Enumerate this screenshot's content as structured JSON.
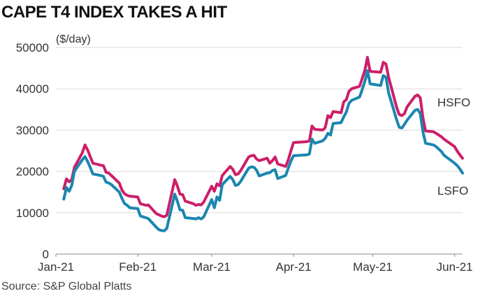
{
  "chart_data": {
    "type": "line",
    "title": "CAPE T4 INDEX TAKES A HIT",
    "unit_label": "($/day)",
    "source": "Source: S&P Global Platts",
    "ylim": [
      0,
      50000
    ],
    "y_ticks": [
      0,
      10000,
      20000,
      30000,
      40000,
      50000
    ],
    "y_tick_labels": [
      "0",
      "10000",
      "20000",
      "30000",
      "40000",
      "50000"
    ],
    "x_ticks": [
      "Jan-21",
      "Feb-21",
      "Mar-21",
      "Apr-21",
      "May-21",
      "Jun-21"
    ],
    "grid": true,
    "colors": {
      "HSFO": "#cc1f6a",
      "LSFO": "#1a86b0"
    },
    "x": [
      "2021-01-04",
      "2021-01-05",
      "2021-01-06",
      "2021-01-07",
      "2021-01-08",
      "2021-01-11",
      "2021-01-12",
      "2021-01-13",
      "2021-01-14",
      "2021-01-15",
      "2021-01-18",
      "2021-01-19",
      "2021-01-20",
      "2021-01-21",
      "2021-01-22",
      "2021-01-25",
      "2021-01-26",
      "2021-01-27",
      "2021-01-28",
      "2021-01-29",
      "2021-02-01",
      "2021-02-02",
      "2021-02-03",
      "2021-02-04",
      "2021-02-05",
      "2021-02-08",
      "2021-02-09",
      "2021-02-10",
      "2021-02-11",
      "2021-02-12",
      "2021-02-15",
      "2021-02-16",
      "2021-02-17",
      "2021-02-18",
      "2021-02-19",
      "2021-02-22",
      "2021-02-23",
      "2021-02-24",
      "2021-02-25",
      "2021-02-26",
      "2021-03-01",
      "2021-03-02",
      "2021-03-03",
      "2021-03-04",
      "2021-03-05",
      "2021-03-08",
      "2021-03-09",
      "2021-03-10",
      "2021-03-11",
      "2021-03-12",
      "2021-03-15",
      "2021-03-16",
      "2021-03-17",
      "2021-03-18",
      "2021-03-19",
      "2021-03-22",
      "2021-03-23",
      "2021-03-24",
      "2021-03-25",
      "2021-03-26",
      "2021-03-29",
      "2021-03-30",
      "2021-03-31",
      "2021-04-01",
      "2021-04-06",
      "2021-04-07",
      "2021-04-08",
      "2021-04-09",
      "2021-04-12",
      "2021-04-13",
      "2021-04-14",
      "2021-04-15",
      "2021-04-16",
      "2021-04-19",
      "2021-04-20",
      "2021-04-21",
      "2021-04-22",
      "2021-04-23",
      "2021-04-26",
      "2021-04-27",
      "2021-04-28",
      "2021-04-29",
      "2021-04-30",
      "2021-05-04",
      "2021-05-05",
      "2021-05-06",
      "2021-05-07",
      "2021-05-10",
      "2021-05-11",
      "2021-05-12",
      "2021-05-13",
      "2021-05-14",
      "2021-05-17",
      "2021-05-18",
      "2021-05-19",
      "2021-05-20",
      "2021-05-21",
      "2021-05-24",
      "2021-05-25",
      "2021-05-26",
      "2021-05-27",
      "2021-05-28",
      "2021-06-01",
      "2021-06-02",
      "2021-06-03",
      "2021-06-04"
    ],
    "series": [
      {
        "name": "HSFO",
        "values": [
          15800,
          18200,
          17500,
          18000,
          21000,
          24500,
          26400,
          25200,
          23600,
          22000,
          21500,
          21400,
          19800,
          19600,
          19000,
          17200,
          15500,
          14600,
          14200,
          14000,
          13800,
          12200,
          12000,
          11800,
          11900,
          9800,
          9500,
          9200,
          9000,
          9400,
          18000,
          16500,
          14500,
          14400,
          12800,
          12200,
          11800,
          12000,
          11900,
          12600,
          16400,
          15200,
          17000,
          16500,
          19000,
          21200,
          20500,
          19200,
          19400,
          20200,
          23500,
          23800,
          23900,
          23000,
          22600,
          23200,
          22000,
          22600,
          23500,
          21800,
          21200,
          22800,
          25000,
          27000,
          27200,
          27400,
          31000,
          30200,
          30000,
          30600,
          33500,
          33000,
          34500,
          34200,
          36800,
          37400,
          39400,
          40000,
          40600,
          42500,
          44500,
          47600,
          44200,
          44000,
          46400,
          46000,
          42800,
          35600,
          33800,
          33500,
          34000,
          35600,
          38200,
          38500,
          37800,
          33000,
          29800,
          29600,
          29200,
          28800,
          28400,
          27800,
          26000,
          24900,
          24000,
          23200
        ]
      },
      {
        "name": "LSFO",
        "values": [
          13300,
          16100,
          15200,
          16600,
          20000,
          22800,
          23600,
          22400,
          21000,
          19400,
          19000,
          18800,
          17400,
          17200,
          16800,
          15000,
          13500,
          12200,
          11800,
          11200,
          11000,
          9200,
          9000,
          8800,
          8600,
          6500,
          5900,
          5700,
          5600,
          6200,
          14500,
          12800,
          10700,
          10600,
          8800,
          8600,
          8500,
          8800,
          8500,
          9000,
          13200,
          11200,
          13800,
          13000,
          16800,
          18800,
          18000,
          16600,
          16800,
          17600,
          20800,
          21100,
          21000,
          20300,
          18900,
          19600,
          19700,
          20200,
          20400,
          18300,
          19000,
          20800,
          22500,
          23800,
          24000,
          24200,
          27800,
          26800,
          27400,
          28000,
          29200,
          28800,
          31600,
          31800,
          33200,
          34400,
          36500,
          37200,
          38000,
          39800,
          41800,
          44400,
          41200,
          40800,
          43200,
          42800,
          39000,
          32600,
          30700,
          30500,
          31400,
          32400,
          34800,
          35000,
          34000,
          29600,
          26800,
          26400,
          26000,
          25400,
          24800,
          23900,
          22000,
          21400,
          20600,
          19600
        ]
      }
    ]
  }
}
